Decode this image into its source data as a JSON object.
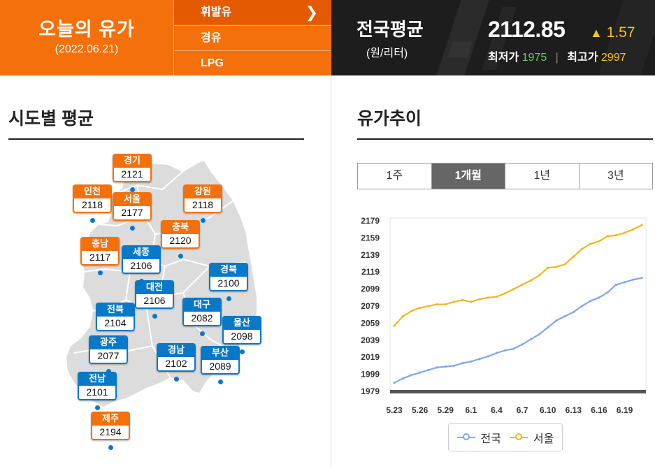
{
  "header": {
    "title": "오늘의 유가",
    "date": "(2022.06.21)",
    "fuel_menu": [
      {
        "label": "휘발유",
        "selected": true
      },
      {
        "label": "경유",
        "selected": false
      },
      {
        "label": "LPG",
        "selected": false
      }
    ],
    "national": {
      "title": "전국평균",
      "unit": "(원/리터)",
      "price": "2112.85",
      "change": "1.57",
      "change_direction": "up",
      "min_label": "최저가",
      "min_value": "1975",
      "max_label": "최고가",
      "max_value": "2997"
    }
  },
  "regions_section": {
    "title": "시도별 평균",
    "regions": [
      {
        "name": "경기",
        "value": "2121",
        "color": "orange"
      },
      {
        "name": "인천",
        "value": "2118",
        "color": "orange"
      },
      {
        "name": "서울",
        "value": "2177",
        "color": "orange"
      },
      {
        "name": "강원",
        "value": "2118",
        "color": "orange"
      },
      {
        "name": "충북",
        "value": "2120",
        "color": "orange"
      },
      {
        "name": "충남",
        "value": "2117",
        "color": "orange"
      },
      {
        "name": "세종",
        "value": "2106",
        "color": "blue"
      },
      {
        "name": "경북",
        "value": "2100",
        "color": "blue"
      },
      {
        "name": "대전",
        "value": "2106",
        "color": "blue"
      },
      {
        "name": "전북",
        "value": "2104",
        "color": "blue"
      },
      {
        "name": "대구",
        "value": "2082",
        "color": "blue"
      },
      {
        "name": "울산",
        "value": "2098",
        "color": "blue"
      },
      {
        "name": "광주",
        "value": "2077",
        "color": "blue"
      },
      {
        "name": "경남",
        "value": "2102",
        "color": "blue"
      },
      {
        "name": "부산",
        "value": "2089",
        "color": "blue"
      },
      {
        "name": "전남",
        "value": "2101",
        "color": "blue"
      },
      {
        "name": "제주",
        "value": "2194",
        "color": "orange"
      }
    ]
  },
  "trend_section": {
    "title": "유가추이",
    "tabs": [
      {
        "label": "1주",
        "active": false
      },
      {
        "label": "1개월",
        "active": true
      },
      {
        "label": "1년",
        "active": false
      },
      {
        "label": "3년",
        "active": false
      }
    ]
  },
  "colors": {
    "orange": "#f4700a",
    "blue": "#0a78c8",
    "national_line": "#7fa8ee",
    "seoul_line": "#f2b820"
  },
  "chart_data": {
    "type": "line",
    "title": "",
    "xlabel": "",
    "ylabel": "",
    "ylim": [
      1979,
      2179
    ],
    "yticks": [
      1979,
      1999,
      2019,
      2039,
      2059,
      2079,
      2099,
      2119,
      2139,
      2159,
      2179
    ],
    "x": [
      "5.23",
      "5.24",
      "5.25",
      "5.26",
      "5.27",
      "5.28",
      "5.29",
      "5.30",
      "5.31",
      "6.1",
      "6.2",
      "6.3",
      "6.4",
      "6.5",
      "6.6",
      "6.7",
      "6.8",
      "6.9",
      "6.10",
      "6.11",
      "6.12",
      "6.13",
      "6.14",
      "6.15",
      "6.16",
      "6.17",
      "6.18",
      "6.19",
      "6.20",
      "6.21"
    ],
    "xtick_labels": [
      "5.23",
      "5.26",
      "5.29",
      "6.1",
      "6.4",
      "6.7",
      "6.10",
      "6.13",
      "6.16",
      "6.19"
    ],
    "series": [
      {
        "name": "전국",
        "values": [
          1989,
          1994,
          1998,
          2001,
          2004,
          2007,
          2008,
          2009,
          2012,
          2014,
          2017,
          2020,
          2024,
          2027,
          2029,
          2034,
          2040,
          2046,
          2054,
          2062,
          2067,
          2072,
          2079,
          2085,
          2089,
          2095,
          2104,
          2107,
          2110,
          2112
        ]
      },
      {
        "name": "서울",
        "values": [
          2056,
          2067,
          2073,
          2077,
          2079,
          2081,
          2081,
          2084,
          2086,
          2084,
          2087,
          2089,
          2090,
          2094,
          2099,
          2104,
          2109,
          2115,
          2124,
          2125,
          2128,
          2137,
          2146,
          2152,
          2155,
          2161,
          2162,
          2165,
          2169,
          2174
        ]
      }
    ],
    "legend": [
      "전국",
      "서울"
    ],
    "legend_position": "bottom-center",
    "grid": false
  }
}
